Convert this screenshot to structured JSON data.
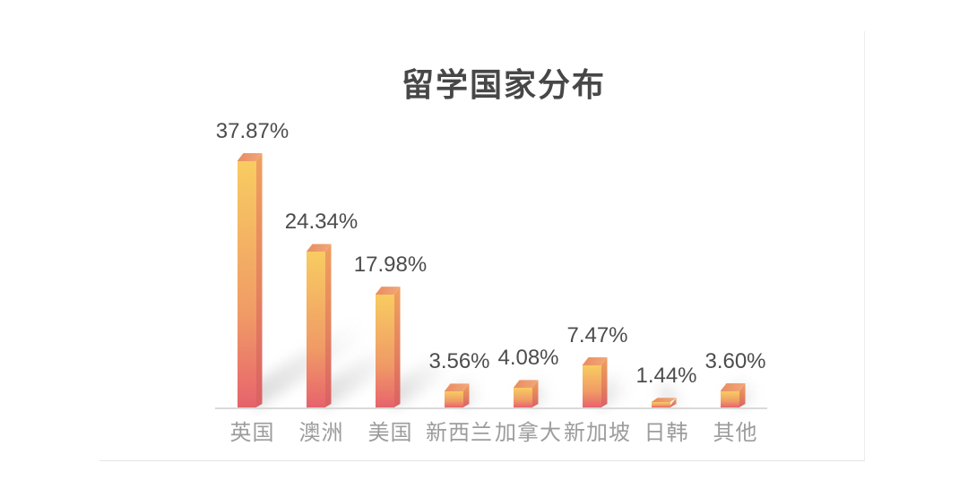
{
  "page": {
    "background_color": "#ffffff",
    "card_edge_color": "#ececec"
  },
  "chart_data": {
    "type": "bar",
    "title": "留学国家分布",
    "categories": [
      "英国",
      "澳洲",
      "美国",
      "新西兰",
      "加拿大",
      "新加坡",
      "日韩",
      "其他"
    ],
    "values": [
      37.87,
      24.34,
      17.98,
      3.56,
      4.08,
      7.47,
      1.44,
      3.6
    ],
    "value_labels": [
      "37.87%",
      "24.34%",
      "17.98%",
      "3.56%",
      "4.08%",
      "7.47%",
      "1.44%",
      "3.60%"
    ],
    "unit": "%",
    "xlabel": "",
    "ylabel": "",
    "ylim": [
      0,
      40
    ],
    "grid": false,
    "legend_position": "none",
    "axis_line_color": "#d9d9d9",
    "title_color": "#474747",
    "value_label_color": "#4c4c4c",
    "category_label_color": "#9c9c9c",
    "bar_gradient_top": "#f8cc61",
    "bar_gradient_mid": "#f09b66",
    "bar_gradient_bottom": "#e8696c",
    "bar_side_color": "#e4825f",
    "bar_cap_color": "#ec9569"
  }
}
